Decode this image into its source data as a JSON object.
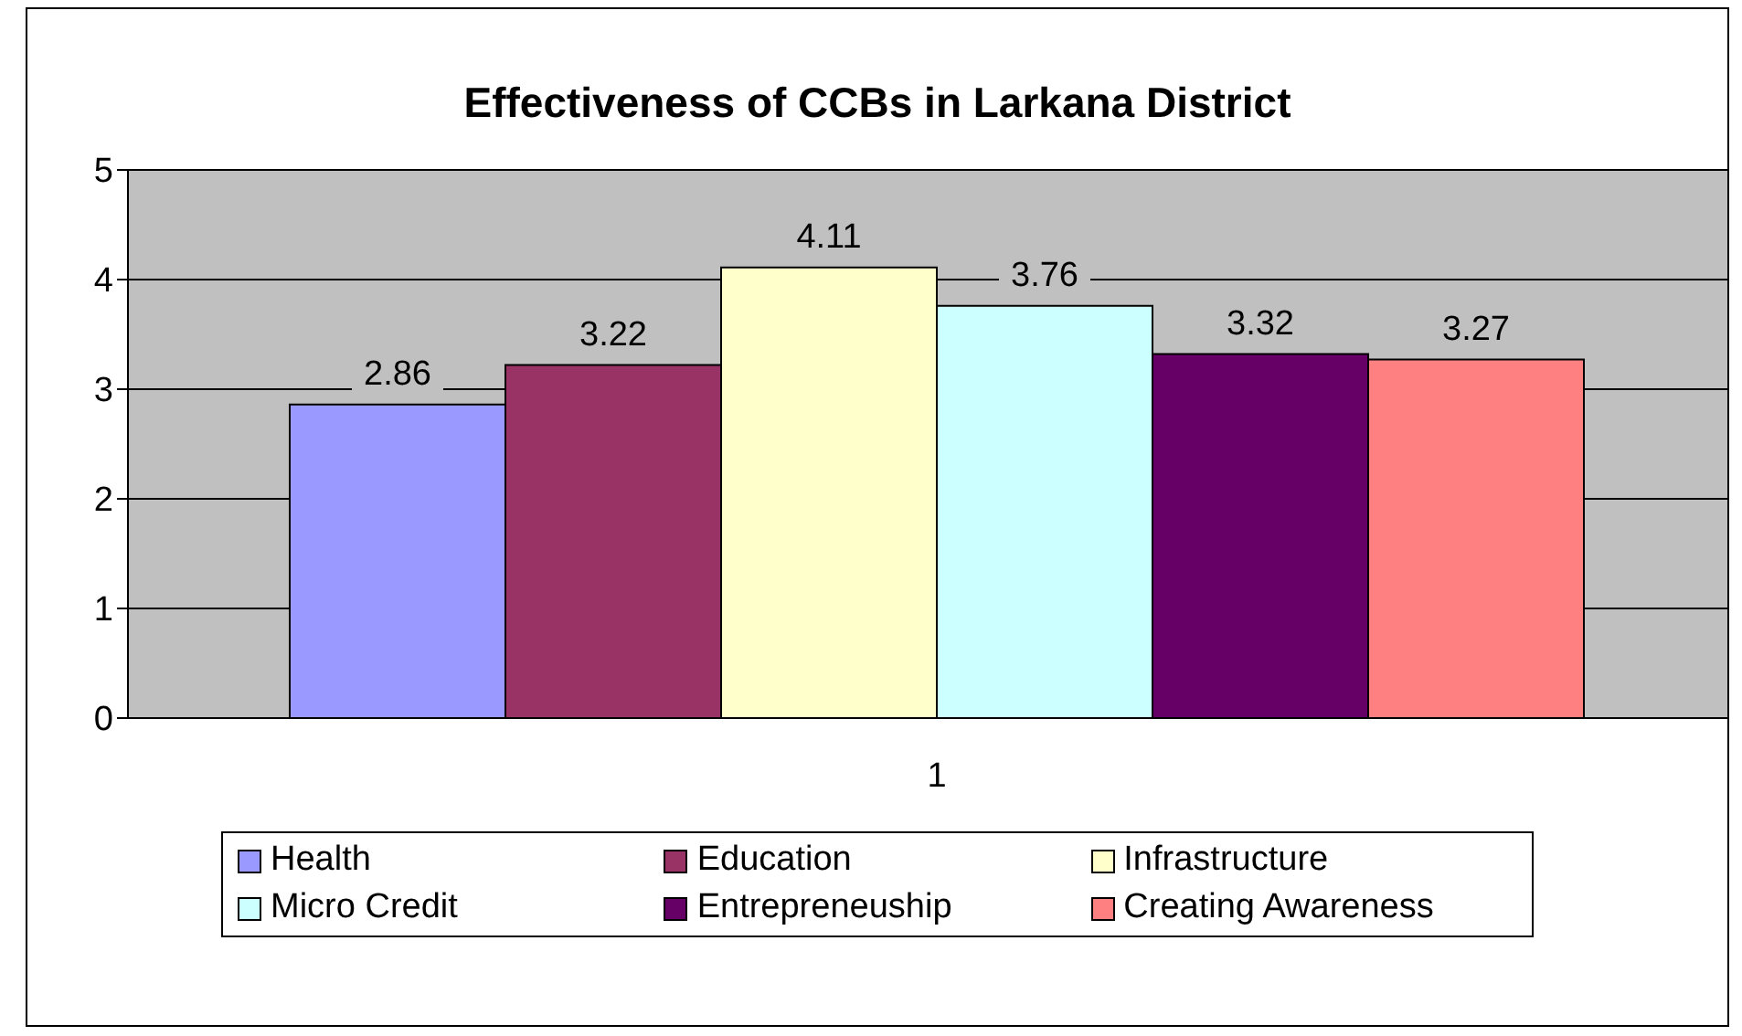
{
  "chart_data": {
    "type": "bar",
    "title": "Effectiveness of CCBs in Larkana District",
    "categories": [
      "1"
    ],
    "series": [
      {
        "name": "Health",
        "color": "#9999ff",
        "values": [
          2.86
        ]
      },
      {
        "name": "Education",
        "color": "#993366",
        "values": [
          3.22
        ]
      },
      {
        "name": "Infrastructure",
        "color": "#ffffcc",
        "values": [
          4.11
        ]
      },
      {
        "name": "Micro Credit",
        "color": "#ccffff",
        "values": [
          3.76
        ]
      },
      {
        "name": "Entrepreneuship",
        "color": "#660066",
        "values": [
          3.32
        ]
      },
      {
        "name": "Creating Awareness",
        "color": "#ff8080",
        "values": [
          3.27
        ]
      }
    ],
    "ylim": [
      0,
      5
    ],
    "yticks": [
      0,
      1,
      2,
      3,
      4,
      5
    ],
    "grid": "y",
    "legend": "bottom",
    "data_labels": true
  }
}
